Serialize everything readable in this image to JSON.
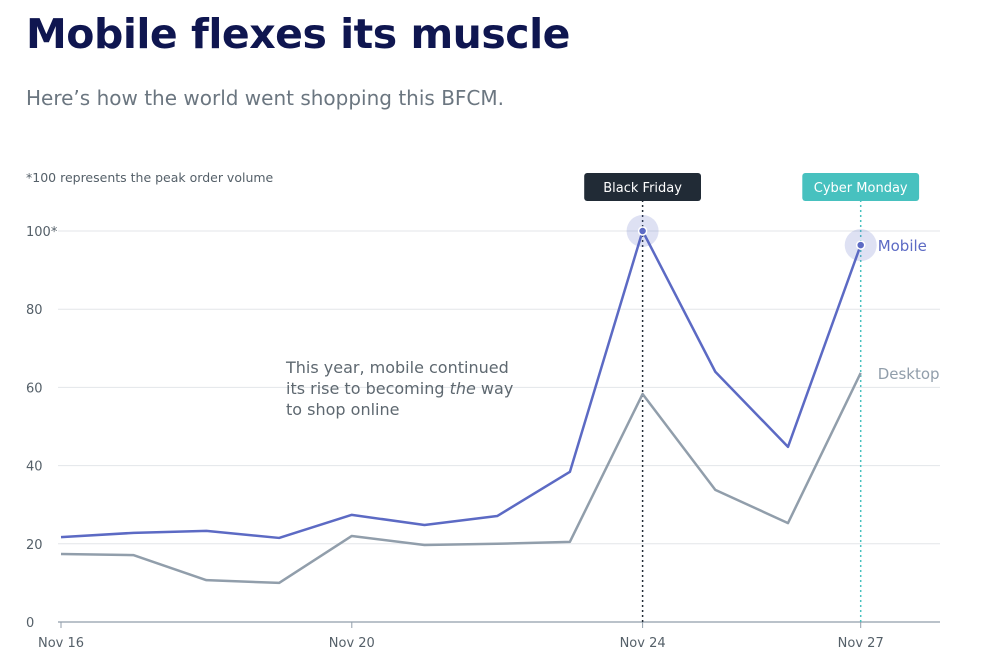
{
  "header": {
    "title": "Mobile flexes its muscle",
    "subtitle": "Here’s how the world went shopping this BFCM."
  },
  "chart_data": {
    "type": "line",
    "title": "Mobile flexes its muscle",
    "subtitle": "Here’s how the world went shopping this BFCM.",
    "note": "*100 represents the peak order volume",
    "xlabel": "",
    "ylabel": "",
    "x": [
      "Nov 16",
      "Nov 17",
      "Nov 18",
      "Nov 19",
      "Nov 20",
      "Nov 21",
      "Nov 22",
      "Nov 23",
      "Nov 24",
      "Nov 25",
      "Nov 26",
      "Nov 27"
    ],
    "x_tick_labels": [
      "Nov 16",
      "Nov 20",
      "Nov 24",
      "Nov 27"
    ],
    "y_tick_labels": [
      "0",
      "20",
      "40",
      "60",
      "80",
      "100*"
    ],
    "ylim": [
      0,
      100
    ],
    "grid": true,
    "series": [
      {
        "name": "Mobile",
        "color": "#5c6ac4",
        "values": [
          21.7,
          22.8,
          23.3,
          21.5,
          27.4,
          24.8,
          27.1,
          38.4,
          100,
          64,
          44.8,
          96.4
        ]
      },
      {
        "name": "Desktop",
        "color": "#919eab",
        "values": [
          17.4,
          17.1,
          10.7,
          10,
          22,
          19.7,
          20,
          20.5,
          58.3,
          33.8,
          25.3,
          63.7
        ]
      }
    ],
    "events": [
      {
        "label": "Black Friday",
        "x": "Nov 24",
        "color": "#212b36"
      },
      {
        "label": "Cyber Monday",
        "x": "Nov 27",
        "color": "#47c1bf"
      }
    ],
    "annotation": {
      "line1": "This year, mobile continued",
      "line2a": "its rise to becoming ",
      "line2b": "the",
      "line2c": " way",
      "line3": "to shop online"
    }
  }
}
